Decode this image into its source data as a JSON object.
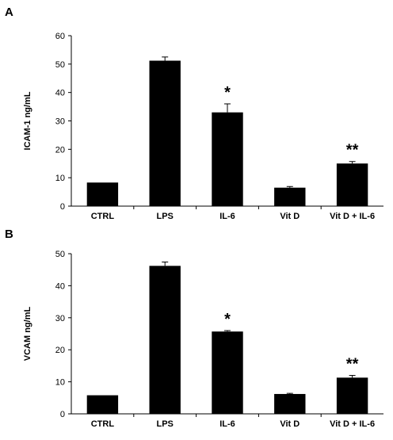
{
  "chart_data": [
    {
      "panel": "A",
      "type": "bar",
      "categories": [
        "CTRL",
        "LPS",
        "IL-6",
        "Vit D",
        "Vit D + IL-6"
      ],
      "values": [
        8.3,
        51.2,
        33.0,
        6.5,
        15.0
      ],
      "errors": [
        0,
        1.3,
        3.0,
        0.4,
        0.7
      ],
      "annotations": [
        "",
        "",
        "*",
        "",
        "**"
      ],
      "xlabel": "",
      "ylabel": "ICAM-1 ng/mL",
      "ylim": [
        0,
        60
      ],
      "yticks": [
        0,
        10,
        20,
        30,
        40,
        50,
        60
      ],
      "bar_color": "#000000",
      "grid": false
    },
    {
      "panel": "B",
      "type": "bar",
      "categories": [
        "CTRL",
        "LPS",
        "IL-6",
        "Vit D",
        "Vit D + IL-6"
      ],
      "values": [
        5.8,
        46.2,
        25.7,
        6.2,
        11.3
      ],
      "errors": [
        0,
        1.2,
        0.3,
        0.2,
        0.7
      ],
      "annotations": [
        "",
        "",
        "*",
        "",
        "**"
      ],
      "xlabel": "",
      "ylabel": "VCAM ng/mL",
      "ylim": [
        0,
        50
      ],
      "yticks": [
        0,
        10,
        20,
        30,
        40,
        50
      ],
      "bar_color": "#000000",
      "grid": false
    }
  ]
}
